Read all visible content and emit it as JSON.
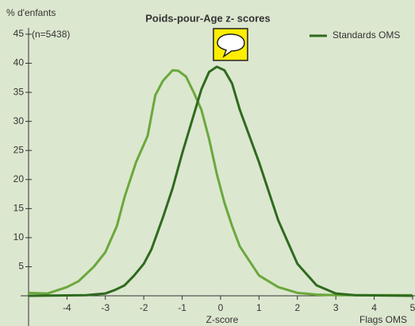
{
  "chart_data": {
    "type": "line",
    "title": "Poids-pour-Age z- scores",
    "y_label": "% d'enfants",
    "sample_note": "(n=5438)",
    "x_label": "Z-score",
    "flags_label": "Flags OMS",
    "xlim": [
      -5,
      5
    ],
    "ylim": [
      0,
      45
    ],
    "xticks": [
      -4,
      -3,
      -2,
      -1,
      0,
      1,
      2,
      3,
      4,
      5
    ],
    "yticks": [
      5,
      10,
      15,
      20,
      25,
      30,
      35,
      40,
      45
    ],
    "legend": "top-right",
    "series": [
      {
        "color": "#6aa83c",
        "x": [
          -5,
          -4.5,
          -4,
          -3.7,
          -3.3,
          -3,
          -2.7,
          -2.5,
          -2.2,
          -1.9,
          -1.7,
          -1.5,
          -1.25,
          -1.1,
          -0.9,
          -0.7,
          -0.5,
          -0.3,
          -0.1,
          0.1,
          0.3,
          0.5,
          0.8,
          1,
          1.5,
          2,
          2.5,
          3,
          5
        ],
        "values": [
          0.5,
          0.4,
          1.5,
          2.5,
          5,
          7.5,
          12,
          17,
          23,
          27.5,
          34.5,
          37,
          38.8,
          38.7,
          37.7,
          35,
          32,
          27,
          21,
          16,
          12,
          8.5,
          5.5,
          3.5,
          1.5,
          0.5,
          0.2,
          0.1,
          0.1
        ]
      },
      {
        "name": "Standards OMS",
        "color": "#2f6a1f",
        "x": [
          -5,
          -3.5,
          -3,
          -2.75,
          -2.5,
          -2.25,
          -2,
          -1.8,
          -1.5,
          -1.25,
          -1,
          -0.75,
          -0.5,
          -0.3,
          -0.1,
          0.1,
          0.3,
          0.5,
          1,
          1.5,
          1.8,
          2,
          2.5,
          3,
          3.5,
          5
        ],
        "values": [
          0,
          0.1,
          0.4,
          1,
          1.8,
          3.5,
          5.5,
          8,
          13.5,
          18.5,
          24.5,
          30,
          35.5,
          38.5,
          39.4,
          38.8,
          36.5,
          32,
          23,
          13,
          8.5,
          5.5,
          1.8,
          0.4,
          0.1,
          0
        ]
      }
    ]
  }
}
